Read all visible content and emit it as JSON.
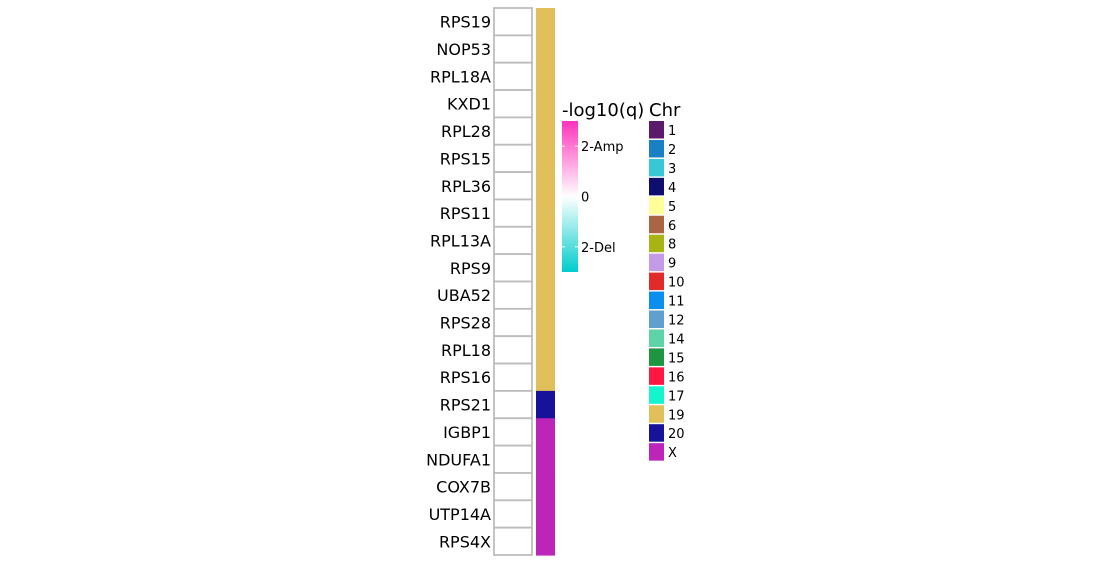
{
  "chart_data": {
    "type": "heatmap",
    "genes": [
      "RPS19",
      "NOP53",
      "RPL18A",
      "KXD1",
      "RPL28",
      "RPS15",
      "RPL36",
      "RPS11",
      "RPL13A",
      "RPS9",
      "UBA52",
      "RPS28",
      "RPL18",
      "RPS16",
      "RPS21",
      "IGBP1",
      "NDUFA1",
      "COX7B",
      "UTP14A",
      "RPS4X"
    ],
    "values": [
      0,
      0,
      0,
      0,
      0,
      0,
      0,
      0,
      0,
      0,
      0,
      0,
      0,
      0,
      0,
      0,
      0,
      0,
      0,
      0
    ],
    "gene_chr": [
      "19",
      "19",
      "19",
      "19",
      "19",
      "19",
      "19",
      "19",
      "19",
      "19",
      "19",
      "19",
      "19",
      "19",
      "20",
      "X",
      "X",
      "X",
      "X",
      "X"
    ],
    "colorbar": {
      "title": "-log10(q)",
      "ticks": [
        {
          "label": "2-Amp",
          "value": 2
        },
        {
          "label": "0",
          "value": 0
        },
        {
          "label": "2-Del",
          "value": -2
        }
      ],
      "range": [
        -3,
        3
      ],
      "colors": {
        "amp": "#ff33bb",
        "mid": "#ffffff",
        "del": "#00cccc"
      }
    },
    "chr_legend": {
      "title": "Chr",
      "entries": [
        {
          "label": "1",
          "color": "#5c1a6b"
        },
        {
          "label": "2",
          "color": "#1a80c4"
        },
        {
          "label": "3",
          "color": "#38c7d4"
        },
        {
          "label": "4",
          "color": "#0e0e6e"
        },
        {
          "label": "5",
          "color": "#ffff99"
        },
        {
          "label": "6",
          "color": "#aa6644"
        },
        {
          "label": "8",
          "color": "#a8b416"
        },
        {
          "label": "9",
          "color": "#c39be7"
        },
        {
          "label": "10",
          "color": "#e12a2a"
        },
        {
          "label": "11",
          "color": "#0a8ff0"
        },
        {
          "label": "12",
          "color": "#5fa0cf"
        },
        {
          "label": "14",
          "color": "#5fd3a8"
        },
        {
          "label": "15",
          "color": "#1e9641"
        },
        {
          "label": "16",
          "color": "#ff1744"
        },
        {
          "label": "17",
          "color": "#12f5cd"
        },
        {
          "label": "19",
          "color": "#e1c05c"
        },
        {
          "label": "20",
          "color": "#16129a"
        },
        {
          "label": "X",
          "color": "#bd25b9"
        }
      ]
    }
  }
}
